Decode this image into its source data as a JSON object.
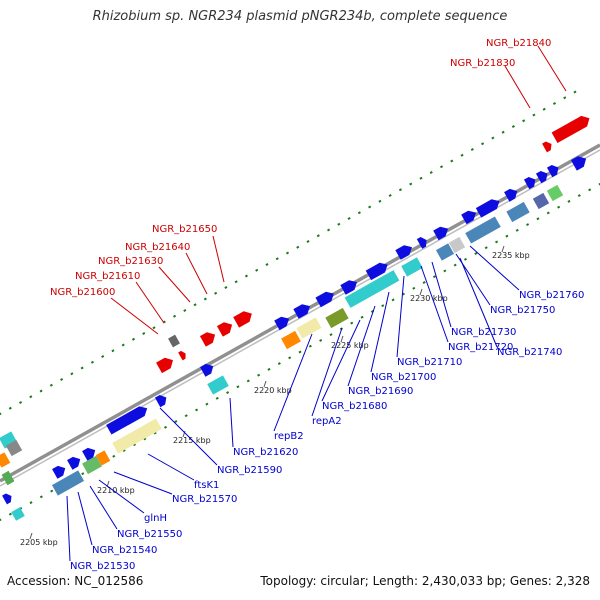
{
  "title": "Rhizobium sp. NGR234 plasmid pNGR234b, complete sequence",
  "footer": {
    "accession": "Accession: NC_012586",
    "summary": "Topology: circular; Length: 2,430,033 bp; Genes: 2,328"
  },
  "colors": {
    "backbone": "#909090",
    "red_genes": "#e60000",
    "blue_genes": "#0d0de0",
    "cyan_genes": "#33cccc",
    "steel_genes": "#4a86b8",
    "tick_green": "#1b7a1b",
    "label_red": "#cc0000",
    "label_blue": "#0000cc"
  },
  "scale_labels": [
    "2205 kbp",
    "2210 kbp",
    "2215 kbp",
    "2220 kbp",
    "2225 kbp",
    "2230 kbp",
    "2235 kbp"
  ],
  "gene_labels_top": [
    "NGR_b21840",
    "NGR_b21830",
    "NGR_b21650",
    "NGR_b21640",
    "NGR_b21630",
    "NGR_b21610",
    "NGR_b21600"
  ],
  "gene_labels_bottom": [
    "NGR_b21760",
    "NGR_b21750",
    "NGR_b21740",
    "NGR_b21730",
    "NGR_b21720",
    "NGR_b21710",
    "NGR_b21700",
    "NGR_b21690",
    "NGR_b21680",
    "repA2",
    "repB2",
    "NGR_b21620",
    "NGR_b21590",
    "ftsK1",
    "NGR_b21570",
    "glnH",
    "NGR_b21550",
    "NGR_b21540",
    "NGR_b21530"
  ]
}
